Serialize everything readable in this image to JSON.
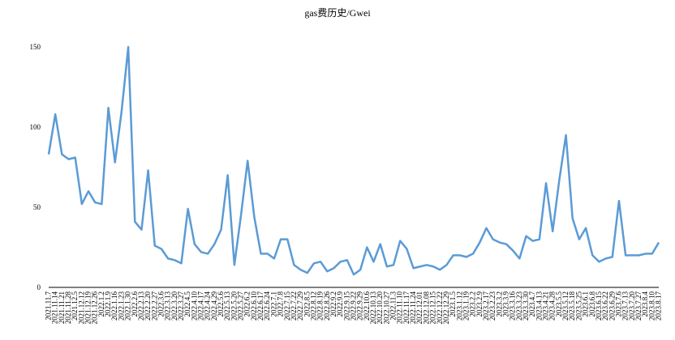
{
  "chart_data": {
    "type": "line",
    "title": "gas费历史/Gwei",
    "categories": [
      "2021.11.7",
      "2021.11.14",
      "2021.11.21",
      "2021.11.28",
      "2021.12.5",
      "2021.12.12",
      "2021.12.19",
      "2021.12.26",
      "2022.1.2",
      "2022.1.9",
      "2022.1.16",
      "2022.1.23",
      "2022.1.30",
      "2022.2.6",
      "2022.2.13",
      "2022.2.20",
      "2022.2.27",
      "2022.3.6",
      "2022.3.13",
      "2022.3.20",
      "2022.3.27",
      "2022.4.5",
      "2022.4.10",
      "2022.4.17",
      "2022.4.24",
      "2022.4.29",
      "2022.5.6",
      "2022.5.13",
      "2022.5.20",
      "2022.5.27",
      "2022.6.2",
      "2022.6.10",
      "2022.6.17",
      "2022.6.24",
      "2022.7.1",
      "2022.7.8",
      "2022.7.15",
      "2022.7.22",
      "2022.7.29",
      "2022.8.5",
      "2022.8.12",
      "2022.8.19",
      "2022.8.26",
      "2022.9.2",
      "2022.9.9",
      "2022.9.15",
      "2022.9.22",
      "2022.9.29",
      "2022.10.6",
      "2022.10.13",
      "2022.10.20",
      "2022.10.27",
      "2022.11.3",
      "2022.11.10",
      "2022.11.17",
      "2022.11.24",
      "2022.12.01",
      "2022.12.08",
      "2022.12.15",
      "2022.12.22",
      "2022.12.29",
      "2023.1.5",
      "2023.1.12",
      "2023.1.19",
      "2023.2.2",
      "2023.2.9",
      "2023.2.17",
      "2023.2.23",
      "2023.3.2",
      "2023.3.9",
      "2023.3.16",
      "2023.3.23",
      "2023.3.30",
      "2023.4.7",
      "2023.4.13",
      "2023.4.21",
      "2023.4.28",
      "2023.5.5",
      "2023.5.12",
      "2023.5.18",
      "2023.5.25",
      "2023.6.1",
      "2023.6.8",
      "2023.6.15",
      "2023.6.22",
      "2023.6.29",
      "2023.7.6",
      "2023.7.13",
      "2023.7.20",
      "2023.7.27",
      "2023.8.4",
      "2023.8.10",
      "2023.8.17"
    ],
    "values": [
      83,
      108,
      83,
      80,
      81,
      52,
      60,
      53,
      52,
      112,
      78,
      110,
      150,
      41,
      36,
      73,
      26,
      24,
      18,
      17,
      15,
      49,
      27,
      22,
      21,
      27,
      36,
      70,
      14,
      45,
      79,
      44,
      21,
      21,
      18,
      30,
      30,
      14,
      11,
      9,
      15,
      16,
      10,
      12,
      16,
      17,
      8,
      11,
      25,
      16,
      27,
      13,
      14,
      29,
      24,
      12,
      13,
      14,
      13,
      11,
      14,
      20,
      20,
      19,
      21,
      28,
      37,
      30,
      28,
      27,
      23,
      18,
      32,
      29,
      30,
      65,
      35,
      67,
      95,
      43,
      30,
      37,
      20,
      16,
      18,
      19,
      54,
      20,
      20,
      20,
      21,
      21,
      28
    ],
    "color": "#5b9bd5",
    "ylim": [
      0,
      150
    ],
    "yticks": [
      0,
      50,
      100,
      150
    ],
    "grid": false
  }
}
